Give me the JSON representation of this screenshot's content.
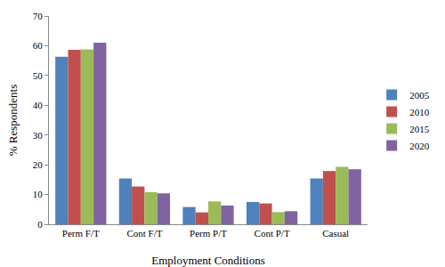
{
  "chart_data": {
    "type": "bar",
    "x_label": "Employment Conditions",
    "y_label": "% Respondents",
    "categories": [
      "Perm F/T",
      "Cont F/T",
      "Perm P/T",
      "Cont P/T",
      "Casual"
    ],
    "series": [
      {
        "name": "2005",
        "color": "#4f81bd",
        "values": [
          56.3,
          15.4,
          5.8,
          7.5,
          15.4
        ]
      },
      {
        "name": "2010",
        "color": "#c0504d",
        "values": [
          58.6,
          12.7,
          4.0,
          7.0,
          17.9
        ]
      },
      {
        "name": "2015",
        "color": "#9bbb59",
        "values": [
          58.8,
          10.8,
          7.7,
          4.1,
          19.3
        ]
      },
      {
        "name": "2020",
        "color": "#8064a2",
        "values": [
          61.0,
          10.4,
          6.3,
          4.4,
          18.5
        ]
      }
    ],
    "ylim": [
      0,
      70
    ],
    "yticks": [
      0,
      10,
      20,
      30,
      40,
      50,
      60,
      70
    ],
    "grid": false,
    "legend": "right"
  }
}
